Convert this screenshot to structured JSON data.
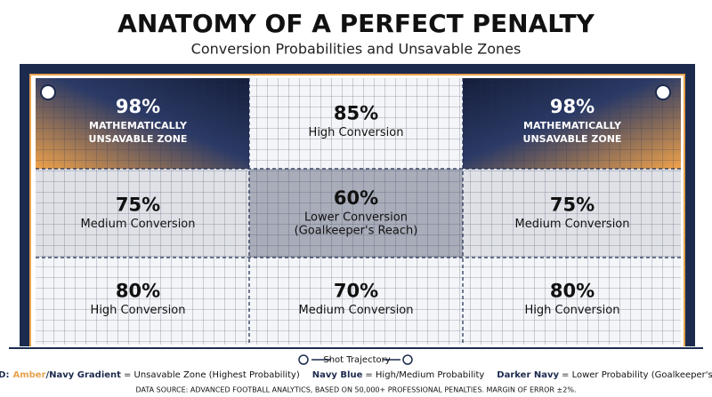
{
  "header": {
    "title": "ANATOMY OF A PERFECT PENALTY",
    "subtitle": "Conversion Probabilities and Unsavable Zones"
  },
  "zones": [
    [
      {
        "value": "98%",
        "lines": [
          "MATHEMATICALLY",
          "UNSAVABLE ZONE"
        ]
      },
      {
        "value": "85%",
        "lines": [
          "High Conversion"
        ]
      },
      {
        "value": "98%",
        "lines": [
          "MATHEMATICALLY",
          "UNSAVABLE ZONE"
        ]
      }
    ],
    [
      {
        "value": "75%",
        "lines": [
          "Medium Conversion"
        ]
      },
      {
        "value": "60%",
        "lines": [
          "Lower Conversion",
          "(Goalkeeper's Reach)"
        ]
      },
      {
        "value": "75%",
        "lines": [
          "Medium Conversion"
        ]
      }
    ],
    [
      {
        "value": "80%",
        "lines": [
          "High Conversion"
        ]
      },
      {
        "value": "70%",
        "lines": [
          "Medium Conversion"
        ]
      },
      {
        "value": "80%",
        "lines": [
          "High Conversion"
        ]
      }
    ]
  ],
  "trajectory": "Shot Trajectory",
  "legend": {
    "title": "LEGEND:",
    "items": [
      {
        "parts": [
          "Amber",
          "/Navy Gradient"
        ],
        "text": "= Unsavable Zone (Highest Probability)"
      },
      {
        "parts": [
          "Navy Blue"
        ],
        "text": "= High/Medium Probability"
      },
      {
        "parts": [
          "Darker Navy"
        ],
        "text": "= Lower Probability (Goalkeeper's Reach)"
      }
    ]
  },
  "source": "DATA SOURCE: ADVANCED FOOTBALL ANALYTICS, BASED ON 50,000+ PROFESSIONAL PENALTIES. MARGIN OF ERROR ±2%."
}
